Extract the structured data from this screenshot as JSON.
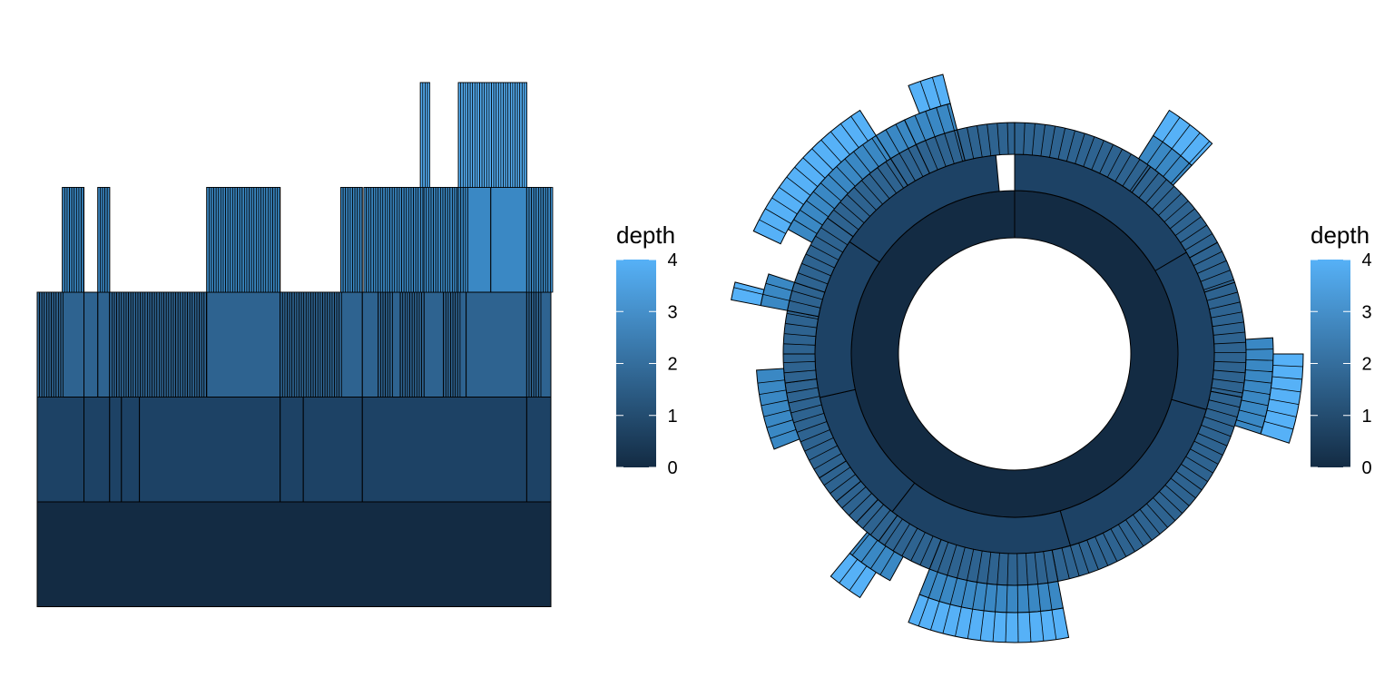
{
  "chart_data": [
    {
      "type": "icicle",
      "title": "",
      "xlabel": "",
      "ylabel": "",
      "depth_range": [
        0,
        4
      ],
      "levels": [
        [
          [
            0.0,
            1.0
          ]
        ],
        [
          [
            0.0,
            0.091
          ],
          [
            0.091,
            0.141
          ],
          [
            0.141,
            0.164
          ],
          [
            0.164,
            0.199
          ],
          [
            0.199,
            0.473
          ],
          [
            0.473,
            0.518
          ],
          [
            0.518,
            0.633
          ],
          [
            0.633,
            0.953
          ],
          [
            0.953,
            1.0
          ]
        ],
        [
          [
            0.0,
            0.049
          ],
          [
            0.049,
            0.091
          ],
          [
            0.091,
            0.118
          ],
          [
            0.118,
            0.141
          ],
          [
            0.141,
            0.33
          ],
          [
            0.33,
            0.473
          ],
          [
            0.473,
            0.591
          ],
          [
            0.591,
            0.633
          ],
          [
            0.633,
            0.664
          ],
          [
            0.664,
            0.691
          ],
          [
            0.691,
            0.707
          ],
          [
            0.707,
            0.753
          ],
          [
            0.753,
            0.791
          ],
          [
            0.791,
            0.82
          ],
          [
            0.82,
            0.835
          ],
          [
            0.835,
            0.953
          ],
          [
            0.953,
            0.978
          ],
          [
            0.978,
            1.0
          ]
        ],
        [
          [
            0.049,
            0.091
          ],
          [
            0.118,
            0.141
          ],
          [
            0.33,
            0.473
          ],
          [
            0.591,
            0.633
          ],
          [
            0.636,
            0.753
          ],
          [
            0.753,
            0.82
          ],
          [
            0.82,
            0.835
          ],
          [
            0.835,
            0.883
          ],
          [
            0.883,
            0.953
          ],
          [
            0.953,
            1.0
          ]
        ],
        [
          [
            0.746,
            0.763
          ],
          [
            0.82,
            0.953
          ]
        ]
      ],
      "thin_leaf_ranges": [
        [
          [
            0.0,
            0.049
          ],
          [
            0.141,
            0.33
          ],
          [
            0.473,
            0.591
          ],
          [
            0.664,
            0.691
          ],
          [
            0.707,
            0.753
          ],
          [
            0.791,
            0.82
          ],
          [
            0.953,
            0.978
          ]
        ],
        [
          [
            0.049,
            0.091
          ],
          [
            0.118,
            0.141
          ],
          [
            0.33,
            0.473
          ],
          [
            0.591,
            0.633
          ],
          [
            0.636,
            0.753
          ],
          [
            0.753,
            0.82
          ],
          [
            0.82,
            0.835
          ],
          [
            0.953,
            1.0
          ]
        ],
        [
          [
            0.746,
            0.763
          ],
          [
            0.82,
            0.953
          ]
        ]
      ],
      "legend": {
        "title": "depth",
        "ticks": [
          "0",
          "1",
          "2",
          "3",
          "4"
        ],
        "position": "right"
      }
    },
    {
      "type": "sunburst",
      "title": "",
      "depth_range": [
        0,
        4
      ],
      "rings": [
        {
          "segments": [
            [
              0,
              1
            ]
          ],
          "inner_deg": null
        },
        {
          "segments": [
            [
              0,
              0.165
            ],
            [
              0.165,
              0.295
            ],
            [
              0.295,
              0.455
            ],
            [
              0.455,
              0.605
            ],
            [
              0.605,
              0.715
            ],
            [
              0.715,
              0.845
            ],
            [
              0.845,
              0.985
            ]
          ]
        },
        {
          "segments": [
            [
              0,
              0.1
            ],
            [
              0.1,
              0.17
            ],
            [
              0.17,
              0.2
            ],
            [
              0.2,
              0.28
            ],
            [
              0.28,
              0.47
            ],
            [
              0.47,
              0.56
            ],
            [
              0.56,
              0.6
            ],
            [
              0.6,
              0.62
            ],
            [
              0.62,
              0.64
            ],
            [
              0.64,
              0.66
            ],
            [
              0.66,
              0.73
            ],
            [
              0.73,
              0.75
            ],
            [
              0.75,
              0.78
            ],
            [
              0.78,
              0.8
            ],
            [
              0.8,
              0.85
            ],
            [
              0.85,
              0.91
            ],
            [
              0.91,
              0.93
            ],
            [
              0.93,
              0.96
            ],
            [
              0.96,
              1.0
            ]
          ]
        },
        {
          "segments": [
            [
              0.09,
              0.12
            ],
            [
              0.24,
              0.3
            ],
            [
              0.47,
              0.56
            ],
            [
              0.58,
              0.61
            ],
            [
              0.69,
              0.74
            ],
            [
              0.78,
              0.8
            ],
            [
              0.83,
              0.91
            ],
            [
              0.91,
              0.93
            ],
            [
              0.93,
              0.96
            ]
          ]
        },
        {
          "segments": [
            [
              0.09,
              0.12
            ],
            [
              0.25,
              0.3
            ],
            [
              0.47,
              0.56
            ],
            [
              0.59,
              0.61
            ],
            [
              0.78,
              0.79
            ],
            [
              0.82,
              0.91
            ],
            [
              0.94,
              0.96
            ]
          ]
        }
      ],
      "legend": {
        "title": "depth",
        "ticks": [
          "0",
          "1",
          "2",
          "3",
          "4"
        ],
        "position": "right"
      }
    }
  ],
  "colors": {
    "depth_0": "#132b43",
    "depth_1": "#1d4265",
    "depth_2": "#2e6390",
    "depth_3": "#3a88c4",
    "depth_4": "#56b1f7",
    "outline": "#000000",
    "background": "#ffffff"
  }
}
